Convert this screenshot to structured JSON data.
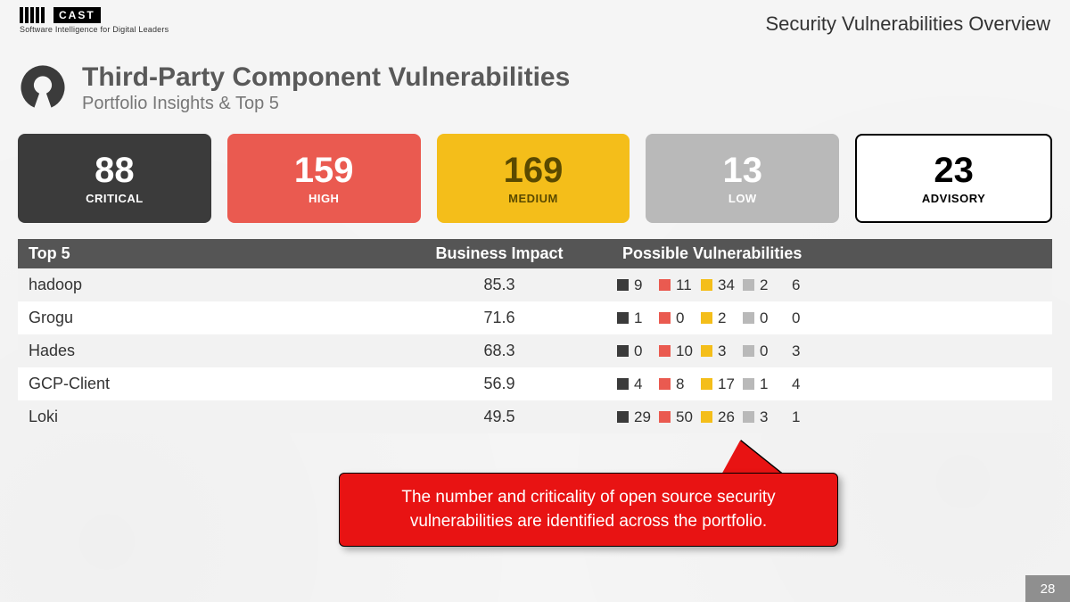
{
  "brand": {
    "name": "CAST",
    "tagline": "Software Intelligence for Digital Leaders"
  },
  "header": {
    "title": "Security Vulnerabilities Overview"
  },
  "page": {
    "title": "Third-Party Component Vulnerabilities",
    "subtitle": "Portfolio Insights & Top 5"
  },
  "severity_colors": {
    "critical": "#3b3b3b",
    "high": "#ea5a50",
    "medium": "#f4be1a",
    "low": "#b9b9b9",
    "advisory_border": "#000000",
    "advisory_bg": "#ffffff"
  },
  "cards": [
    {
      "key": "critical",
      "value": "88",
      "label": "CRITICAL",
      "bg": "#3b3b3b",
      "fg": "#ffffff"
    },
    {
      "key": "high",
      "value": "159",
      "label": "HIGH",
      "bg": "#ea5a50",
      "fg": "#ffffff"
    },
    {
      "key": "medium",
      "value": "169",
      "label": "MEDIUM",
      "bg": "#f4be1a",
      "fg": "#5a4a00"
    },
    {
      "key": "low",
      "value": "13",
      "label": "LOW",
      "bg": "#b9b9b9",
      "fg": "#ffffff"
    },
    {
      "key": "advisory",
      "value": "23",
      "label": "ADVISORY",
      "bg": "#ffffff",
      "fg": "#000000",
      "outline": true
    }
  ],
  "table": {
    "columns": [
      "Top 5",
      "Business Impact",
      "Possible Vulnerabilities"
    ],
    "vuln_legend_colors": [
      "#3b3b3b",
      "#ea5a50",
      "#f4be1a",
      "#b9b9b9",
      "#ffffff"
    ],
    "rows": [
      {
        "name": "hadoop",
        "impact": "85.3",
        "vulns": [
          "9",
          "11",
          "34",
          "2",
          "6"
        ]
      },
      {
        "name": "Grogu",
        "impact": "71.6",
        "vulns": [
          "1",
          "0",
          "2",
          "0",
          "0"
        ]
      },
      {
        "name": "Hades",
        "impact": "68.3",
        "vulns": [
          "0",
          "10",
          "3",
          "0",
          "3"
        ]
      },
      {
        "name": "GCP-Client",
        "impact": "56.9",
        "vulns": [
          "4",
          "8",
          "17",
          "1",
          "4"
        ]
      },
      {
        "name": "Loki",
        "impact": "49.5",
        "vulns": [
          "29",
          "50",
          "26",
          "3",
          "1"
        ]
      }
    ]
  },
  "callout": {
    "line1": "The number and criticality of open source security",
    "line2": "vulnerabilities are identified across the portfolio.",
    "bg": "#e81313"
  },
  "page_number": "28"
}
